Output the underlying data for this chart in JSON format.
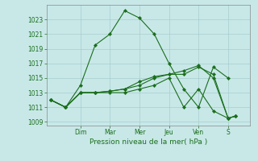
{
  "background_color": "#c8e8e8",
  "line_color": "#1a6e1a",
  "grid_color": "#a8cccc",
  "title": "Pression niveau de la mer( hPa )",
  "ylim": [
    1008.5,
    1025.0
  ],
  "yticks": [
    1009,
    1011,
    1013,
    1015,
    1017,
    1019,
    1021,
    1023
  ],
  "day_labels": [
    "Dim",
    "Mar",
    "Mer",
    "Jeu",
    "Ven",
    "S"
  ],
  "day_x": [
    2.0,
    4.0,
    6.0,
    8.0,
    10.0,
    12.0
  ],
  "xlim": [
    -0.3,
    13.5
  ],
  "s1_x": [
    0,
    1,
    2,
    3,
    4,
    5,
    6,
    7,
    8,
    9,
    10,
    11,
    12
  ],
  "s1_y": [
    1012,
    1011,
    1014,
    1019.5,
    1021,
    1024.2,
    1023.2,
    1021,
    1017,
    1013.5,
    1011,
    1016.5,
    1015
  ],
  "s2_x": [
    0,
    1,
    2,
    3,
    4,
    5,
    6,
    7,
    8,
    9,
    10,
    11,
    12,
    12.5
  ],
  "s2_y": [
    1012,
    1011,
    1013,
    1013,
    1013.2,
    1013.5,
    1014.5,
    1015.2,
    1015.5,
    1015.5,
    1016.5,
    1015.5,
    1009.5,
    1009.8
  ],
  "s3_x": [
    0,
    1,
    2,
    3,
    4,
    5,
    6,
    7,
    8,
    9,
    10,
    11,
    12,
    12.5
  ],
  "s3_y": [
    1012,
    1011,
    1013,
    1013,
    1013.2,
    1013.5,
    1014.0,
    1015.0,
    1015.5,
    1016.0,
    1016.7,
    1015.0,
    1009.5,
    1009.8
  ],
  "s4_x": [
    0,
    1,
    2,
    3,
    4,
    5,
    6,
    7,
    8,
    9,
    10,
    11,
    12,
    12.5
  ],
  "s4_y": [
    1012,
    1011,
    1013,
    1013,
    1013,
    1013,
    1013.5,
    1014,
    1015,
    1011,
    1013.5,
    1010.5,
    1009.5,
    1009.8
  ]
}
